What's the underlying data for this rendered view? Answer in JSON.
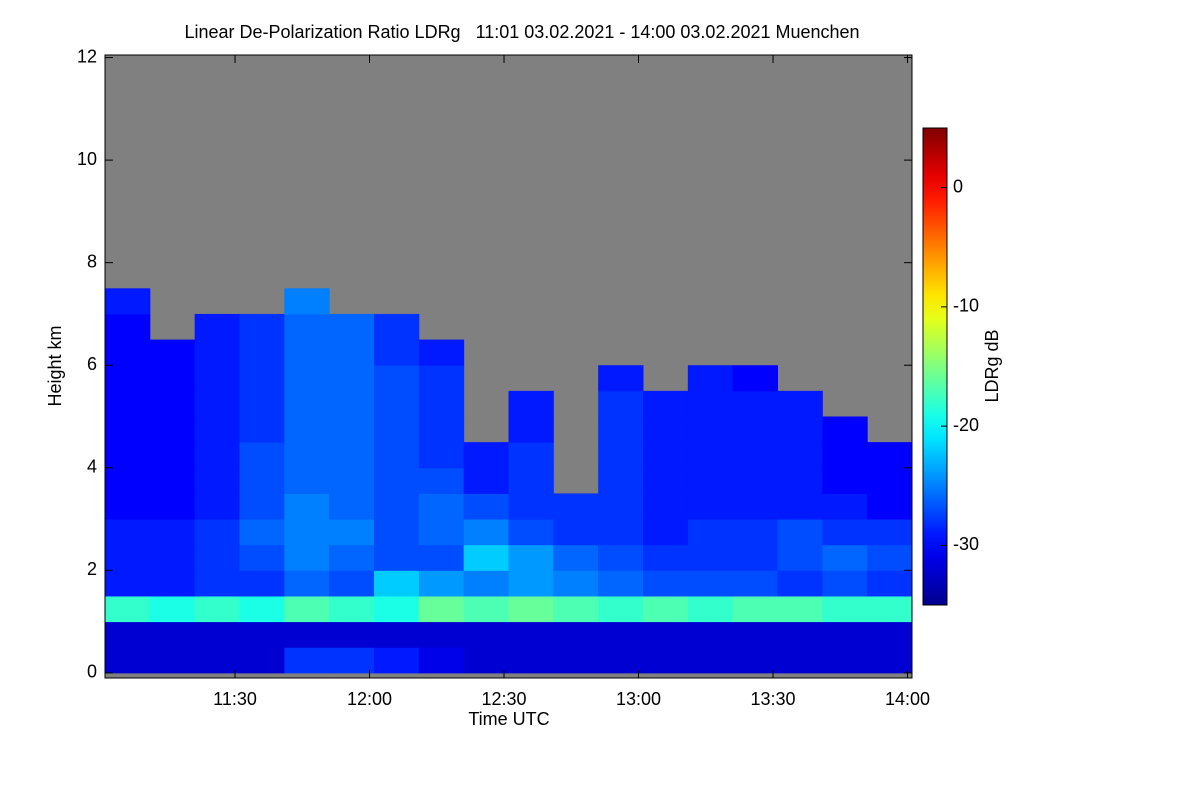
{
  "chart_data": {
    "type": "heatmap",
    "title": "Linear De-Polarization Ratio LDRg   11:01 03.02.2021 - 14:00 03.02.2021 Muenchen",
    "x_label": "Time UTC",
    "y_label": "Height km",
    "x": [
      666,
      676,
      686,
      696,
      706,
      716,
      726,
      736,
      746,
      756,
      766,
      776,
      786,
      796,
      806,
      816,
      826,
      836
    ],
    "y": [
      0.25,
      0.75,
      1.25,
      1.75,
      2.25,
      2.75,
      3.25,
      3.75,
      4.25,
      4.75,
      5.25,
      5.75,
      6.25,
      6.75,
      7.25
    ],
    "values": [
      [
        -32,
        -32,
        -32,
        -32,
        -28,
        -28,
        -29,
        -31,
        -32,
        -32,
        -32,
        -32,
        -32,
        -32,
        -32,
        -32,
        -32,
        -32
      ],
      [
        -32,
        -32,
        -32,
        -32,
        -32,
        -32,
        -32,
        -32,
        -32,
        -32,
        -32,
        -32,
        -32,
        -32,
        -32,
        -32,
        -32,
        -32
      ],
      [
        -18,
        -19,
        -18,
        -19,
        -17,
        -18,
        -19,
        -16,
        -17,
        -16,
        -17,
        -18,
        -17,
        -18,
        -17,
        -17,
        -18,
        -18
      ],
      [
        -29,
        -29,
        -28,
        -28,
        -26,
        -27,
        -22,
        -24,
        -25,
        -24,
        -25,
        -26,
        -27,
        -27,
        -27,
        -28,
        -27,
        -28
      ],
      [
        -29,
        -29,
        -28,
        -27,
        -25,
        -26,
        -27,
        -27,
        -22,
        -24,
        -26,
        -27,
        -28,
        -28,
        -28,
        -27,
        -26,
        -27
      ],
      [
        -29,
        -29,
        -28,
        -26,
        -25,
        -25,
        -27,
        -26,
        -25,
        -27,
        -28,
        -28,
        -29,
        -28,
        -28,
        -27,
        -28,
        -28
      ],
      [
        -30,
        -30,
        -29,
        -27,
        -25,
        -26,
        -27,
        -26,
        -27,
        -28,
        -28,
        -28,
        -29,
        -29,
        -29,
        -29,
        -29,
        -30
      ],
      [
        -30,
        -30,
        -29,
        -27,
        -26,
        -26,
        -27,
        -27,
        -29,
        -28,
        null,
        -28,
        -29,
        -29,
        -29,
        -29,
        -30,
        -30
      ],
      [
        -30,
        -30,
        -29,
        -27,
        -26,
        -26,
        -27,
        -28,
        -29,
        -28,
        null,
        -28,
        -29,
        -29,
        -29,
        -29,
        -30,
        -30
      ],
      [
        -30,
        -30,
        -29,
        -28,
        -26,
        -26,
        -27,
        -28,
        null,
        -29,
        null,
        -28,
        -29,
        -29,
        -29,
        -29,
        -30,
        null
      ],
      [
        -30,
        -30,
        -29,
        -28,
        -26,
        -26,
        -27,
        -28,
        null,
        -29,
        null,
        -28,
        -29,
        -29,
        -29,
        -29,
        null,
        null
      ],
      [
        -30,
        -30,
        -29,
        -28,
        -26,
        -26,
        -27,
        -28,
        null,
        null,
        null,
        -29,
        null,
        -29,
        -30,
        null,
        null,
        null
      ],
      [
        -30,
        -30,
        -29,
        -28,
        -26,
        -26,
        -28,
        -29,
        null,
        null,
        null,
        null,
        null,
        null,
        null,
        null,
        null,
        null
      ],
      [
        -30,
        null,
        -29,
        -28,
        -26,
        -26,
        -28,
        null,
        null,
        null,
        null,
        null,
        null,
        null,
        null,
        null,
        null,
        null
      ],
      [
        -29,
        null,
        null,
        null,
        -25,
        null,
        null,
        null,
        null,
        null,
        null,
        null,
        null,
        null,
        null,
        null,
        null,
        null
      ]
    ],
    "xlim": [
      661,
      841
    ],
    "xticks": [
      {
        "value": 690,
        "label": "11:30"
      },
      {
        "value": 720,
        "label": "12:00"
      },
      {
        "value": 750,
        "label": "12:30"
      },
      {
        "value": 780,
        "label": "13:00"
      },
      {
        "value": 810,
        "label": "13:30"
      },
      {
        "value": 840,
        "label": "14:00"
      }
    ],
    "ylim": [
      -0.1,
      12.05
    ],
    "yticks": [
      0,
      2,
      4,
      6,
      8,
      10,
      12
    ],
    "background_color": "#808080",
    "colormap": "jet",
    "colorbar": {
      "label": "LDRg dB",
      "lim": [
        -35,
        5
      ],
      "ticks": [
        0,
        -10,
        -20,
        -30
      ]
    }
  }
}
